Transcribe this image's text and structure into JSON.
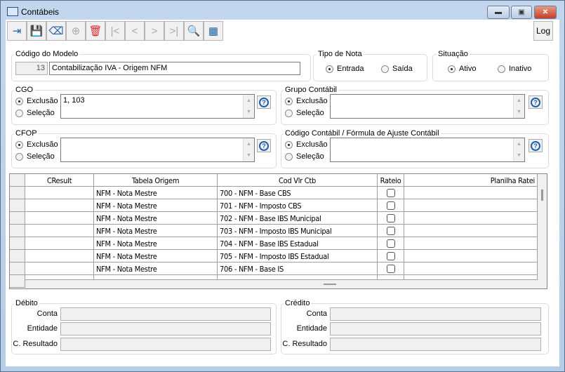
{
  "window": {
    "title": "Contábeis",
    "controls": [
      "minimize",
      "restore",
      "close"
    ]
  },
  "toolbar": {
    "buttons": [
      {
        "name": "exit",
        "icon": "exit-icon",
        "glyph": "⇥",
        "color": "#1e5fa8",
        "enabled": true
      },
      {
        "name": "save",
        "icon": "save-icon",
        "glyph": "💾",
        "color": "#1e5fa8",
        "enabled": true
      },
      {
        "name": "clear",
        "icon": "eraser-icon",
        "glyph": "⌫",
        "color": "#1e5fa8",
        "enabled": true
      },
      {
        "name": "add",
        "icon": "add-icon",
        "glyph": "⊕",
        "color": "#aaaaaa",
        "enabled": false
      },
      {
        "name": "delete",
        "icon": "trash-icon",
        "glyph": "🗑",
        "color": "#d22b2b",
        "enabled": true
      },
      {
        "name": "first",
        "icon": "first-icon",
        "glyph": "|<",
        "color": "#aaaaaa",
        "enabled": false
      },
      {
        "name": "previous",
        "icon": "previous-icon",
        "glyph": "<",
        "color": "#aaaaaa",
        "enabled": false
      },
      {
        "name": "next",
        "icon": "next-icon",
        "glyph": ">",
        "color": "#aaaaaa",
        "enabled": false
      },
      {
        "name": "last",
        "icon": "last-icon",
        "glyph": ">|",
        "color": "#aaaaaa",
        "enabled": false
      },
      {
        "name": "search",
        "icon": "search-icon",
        "glyph": "🔍",
        "color": "#aaaaaa",
        "enabled": false
      },
      {
        "name": "grid",
        "icon": "table-icon",
        "glyph": "▦",
        "color": "#1e5fa8",
        "enabled": true
      }
    ],
    "log_label": "Log"
  },
  "modelo": {
    "label": "Código do Modelo",
    "code": "13",
    "name": "Contabilização IVA - Origem NFM"
  },
  "tipo_nota": {
    "label": "Tipo de Nota",
    "options": [
      "Entrada",
      "Saída"
    ],
    "selected": "Entrada"
  },
  "situacao": {
    "label": "Situação",
    "options": [
      "Ativo",
      "Inativo"
    ],
    "selected": "Ativo"
  },
  "cgo": {
    "label": "CGO",
    "options": [
      "Exclusão",
      "Seleção"
    ],
    "selected": "Exclusão",
    "value": "1, 103"
  },
  "grupo": {
    "label": "Grupo Contábil",
    "options": [
      "Exclusão",
      "Seleção"
    ],
    "selected": "Exclusão",
    "value": ""
  },
  "cfop": {
    "label": "CFOP",
    "options": [
      "Exclusão",
      "Seleção"
    ],
    "selected": "Exclusão",
    "value": ""
  },
  "codcont": {
    "label": "Código Contábil / Fórmula de Ajuste Contábil",
    "options": [
      "Exclusão",
      "Seleção"
    ],
    "selected": "Exclusão",
    "value": ""
  },
  "grid": {
    "columns": [
      "CResult",
      "Tabela Origem",
      "Cod Vlr Ctb",
      "Rateio",
      "Planilha Ratei"
    ],
    "rows": [
      {
        "cresult": "",
        "tabela": "NFM - Nota Mestre",
        "cod": "700 - NFM - Base CBS",
        "rateio": false,
        "planilha": ""
      },
      {
        "cresult": "",
        "tabela": "NFM - Nota Mestre",
        "cod": "701 - NFM - Imposto CBS",
        "rateio": false,
        "planilha": ""
      },
      {
        "cresult": "",
        "tabela": "NFM - Nota Mestre",
        "cod": "702 - NFM - Base IBS Municipal",
        "rateio": false,
        "planilha": ""
      },
      {
        "cresult": "",
        "tabela": "NFM - Nota Mestre",
        "cod": "703 - NFM - Imposto IBS Municipal",
        "rateio": false,
        "planilha": ""
      },
      {
        "cresult": "",
        "tabela": "NFM - Nota Mestre",
        "cod": "704 - NFM - Base IBS Estadual",
        "rateio": false,
        "planilha": ""
      },
      {
        "cresult": "",
        "tabela": "NFM - Nota Mestre",
        "cod": "705 - NFM - Imposto IBS Estadual",
        "rateio": false,
        "planilha": ""
      },
      {
        "cresult": "",
        "tabela": "NFM - Nota Mestre",
        "cod": "706 - NFM - Base IS",
        "rateio": false,
        "planilha": ""
      }
    ]
  },
  "debito": {
    "label": "Débito",
    "fields": [
      "Conta",
      "Entidade",
      "C. Resultado"
    ]
  },
  "credito": {
    "label": "Crédito",
    "fields": [
      "Conta",
      "Entidade",
      "C. Resultado"
    ]
  }
}
